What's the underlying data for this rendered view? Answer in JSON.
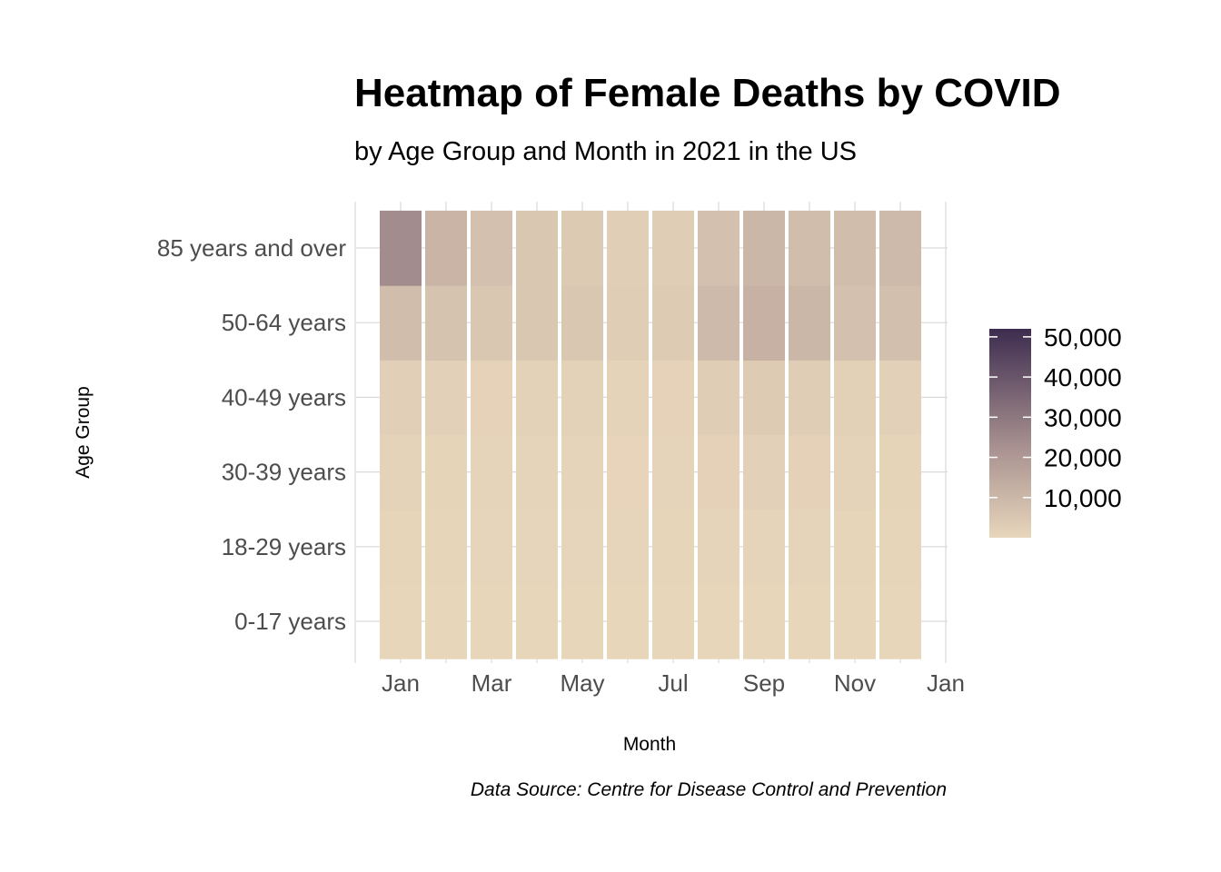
{
  "chart_data": {
    "type": "heatmap",
    "title": "Heatmap of Female Deaths by COVID",
    "subtitle": "by Age Group and Month in 2021 in the US",
    "xlabel": "Month",
    "ylabel": "Age Group",
    "caption": "Data Source: Centre for Disease Control and Prevention",
    "x_tick_labels": [
      "Jan",
      "Mar",
      "May",
      "Jul",
      "Sep",
      "Nov",
      "Jan"
    ],
    "x_tick_months": [
      1,
      3,
      5,
      7,
      9,
      11,
      13
    ],
    "months": [
      "Jan",
      "Feb",
      "Mar",
      "Apr",
      "May",
      "Jun",
      "Jul",
      "Aug",
      "Sep",
      "Oct",
      "Nov",
      "Dec"
    ],
    "age_groups": [
      "0-17 years",
      "18-29 years",
      "30-39 years",
      "40-49 years",
      "50-64 years",
      "85 years and over"
    ],
    "values": [
      [
        50,
        40,
        30,
        30,
        30,
        30,
        40,
        60,
        70,
        60,
        40,
        40
      ],
      [
        400,
        350,
        250,
        250,
        250,
        200,
        300,
        600,
        700,
        600,
        400,
        350
      ],
      [
        900,
        800,
        600,
        600,
        600,
        500,
        700,
        1500,
        1800,
        1500,
        1000,
        800
      ],
      [
        2200,
        1800,
        1200,
        1400,
        1400,
        1000,
        1200,
        3000,
        3600,
        3000,
        2100,
        1800
      ],
      [
        8000,
        6500,
        5000,
        5000,
        5000,
        3000,
        3500,
        9000,
        12000,
        10000,
        7000,
        7500
      ],
      [
        24000,
        11000,
        7000,
        5000,
        4000,
        2500,
        3000,
        7000,
        10000,
        8000,
        8000,
        9000
      ]
    ],
    "legend": {
      "title": "",
      "placement": "right",
      "ticks": [
        10000,
        20000,
        30000,
        40000,
        50000
      ],
      "tick_labels": [
        "10,000",
        "20,000",
        "30,000",
        "40,000",
        "50,000"
      ],
      "min": 0,
      "max": 52000,
      "color_low": "#e8d6bb",
      "color_mid": "#a58e8e",
      "color_high": "#3e2c50"
    },
    "grid": true
  }
}
